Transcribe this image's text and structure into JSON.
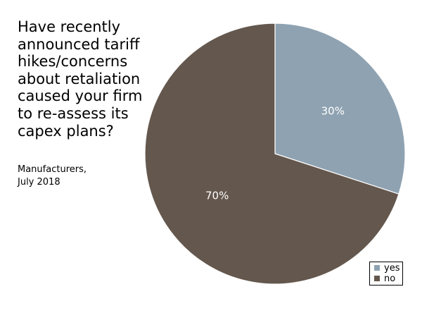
{
  "chart_data": {
    "type": "pie",
    "title": "Have recently announced tariff hikes/concerns about retaliation caused your firm to re-assess its capex plans?",
    "subtitle_lines": [
      "Manufacturers,",
      "July 2018"
    ],
    "slices": [
      {
        "label": "yes",
        "value": 30,
        "display": "30%",
        "color": "#8fa2b1"
      },
      {
        "label": "no",
        "value": 70,
        "display": "70%",
        "color": "#64574d"
      }
    ],
    "start_angle_deg": 0,
    "direction": "clockwise",
    "legend_position": "bottom-right"
  }
}
